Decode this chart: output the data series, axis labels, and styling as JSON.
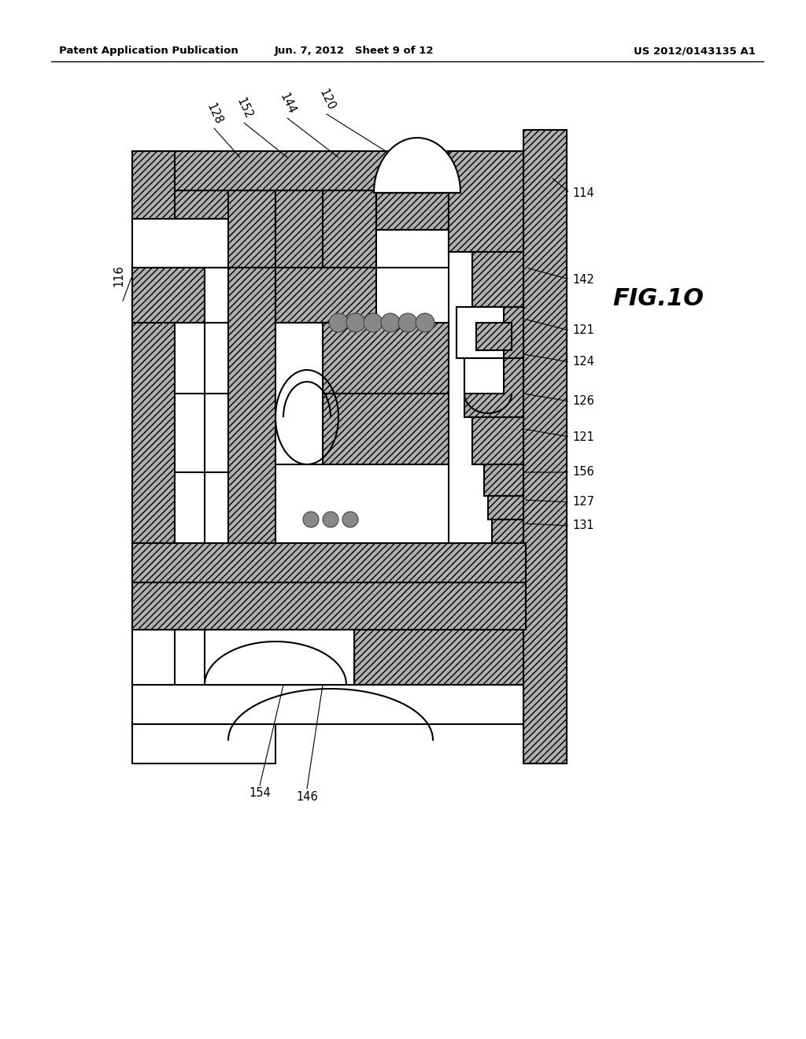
{
  "header_left": "Patent Application Publication",
  "header_middle": "Jun. 7, 2012   Sheet 9 of 12",
  "header_right": "US 2012/0143135 A1",
  "figure_label": "FIG.1O",
  "bg_color": "#ffffff",
  "line_color": "#000000",
  "fig_width": 10.24,
  "fig_height": 13.2,
  "dpi": 100
}
